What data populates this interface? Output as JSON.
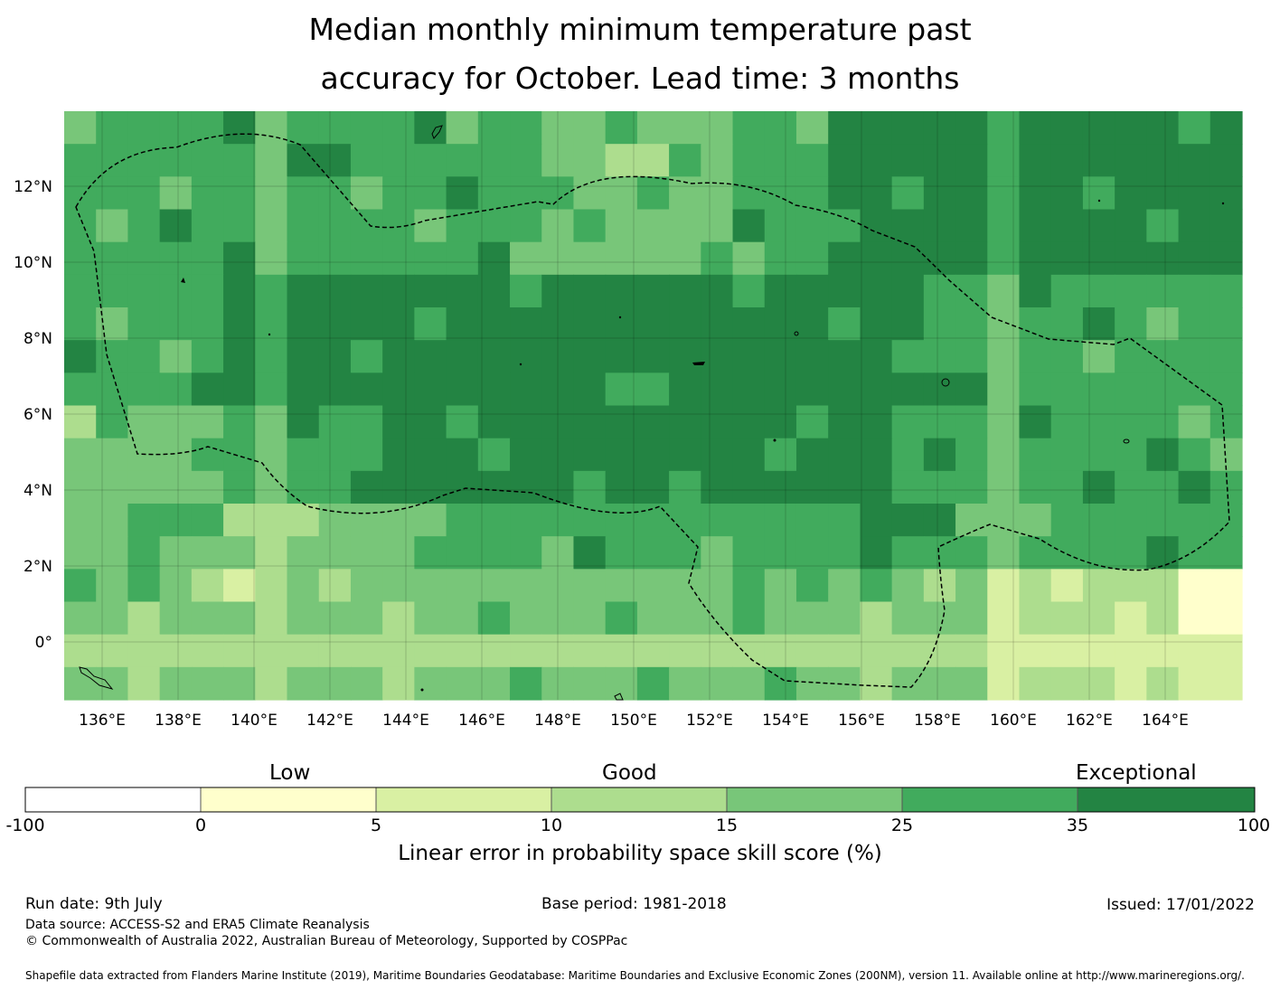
{
  "title": {
    "line1": "Median monthly minimum temperature past",
    "line2": "accuracy for October. Lead time: 3 months"
  },
  "map": {
    "lon_ticks": [
      "136°E",
      "138°E",
      "140°E",
      "142°E",
      "144°E",
      "146°E",
      "148°E",
      "150°E",
      "152°E",
      "154°E",
      "156°E",
      "158°E",
      "160°E",
      "162°E",
      "164°E"
    ],
    "lat_ticks": [
      "12°N",
      "10°N",
      "8°N",
      "6°N",
      "4°N",
      "2°N",
      "0°"
    ],
    "boundary_style": "dashed black line (maritime EEZ boundary)",
    "colormap": [
      "#ffffff",
      "#ffffcc",
      "#d9f0a3",
      "#addd8e",
      "#78c679",
      "#41ab5d",
      "#238443"
    ]
  },
  "legend": {
    "category_labels": [
      "Low",
      "Good",
      "Exceptional"
    ],
    "ticks": [
      "-100",
      "0",
      "5",
      "10",
      "15",
      "25",
      "35",
      "100"
    ],
    "colors": [
      "#ffffff",
      "#ffffcc",
      "#d9f0a3",
      "#addd8e",
      "#78c679",
      "#41ab5d",
      "#238443"
    ],
    "xlabel": "Linear error in probability space skill score (%)"
  },
  "footer": {
    "run_date": "Run date: 9th July",
    "base_period": "Base period: 1981-2018",
    "issued": "Issued: 17/01/2022",
    "data_source": "Data source: ACCESS-S2 and ERA5 Climate Reanalysis",
    "copyright": "© Commonwealth of Australia 2022, Australian Bureau of Meteorology, Supported by COSPPac",
    "shapefile": "Shapefile data extracted from Flanders Marine Institute (2019), Maritime Boundaries Geodatabase: Maritime Boundaries and Exclusive Economic Zones (200NM), version 11. Available online at http://www.marineregions.org/."
  }
}
